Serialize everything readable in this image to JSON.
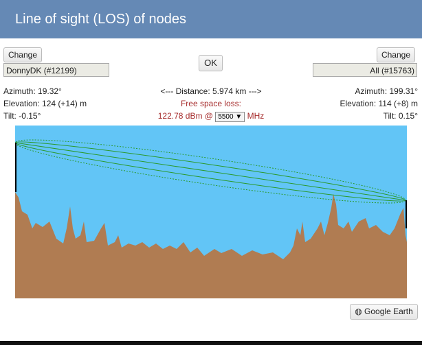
{
  "header": {
    "title": "Line of sight (LOS) of nodes"
  },
  "left": {
    "button": "Change",
    "node": "DonnyDK (#12199)",
    "azimuth": "Azimuth: 19.32°",
    "elevation": "Elevation: 124 (+14) m",
    "tilt": "Tilt: -0.15°"
  },
  "center": {
    "button": "OK",
    "distance": "<--- Distance: 5.974 km --->",
    "loss_label": "Free space loss:",
    "loss_value": "122.78 dBm @",
    "frequency": "5500",
    "unit": "MHz"
  },
  "right": {
    "button": "Change",
    "node": "All (#15763)",
    "azimuth": "Azimuth: 199.31°",
    "elevation": "Elevation: 114 (+8) m",
    "tilt": "Tilt: 0.15°"
  },
  "footer": {
    "button": "Google Earth"
  }
}
